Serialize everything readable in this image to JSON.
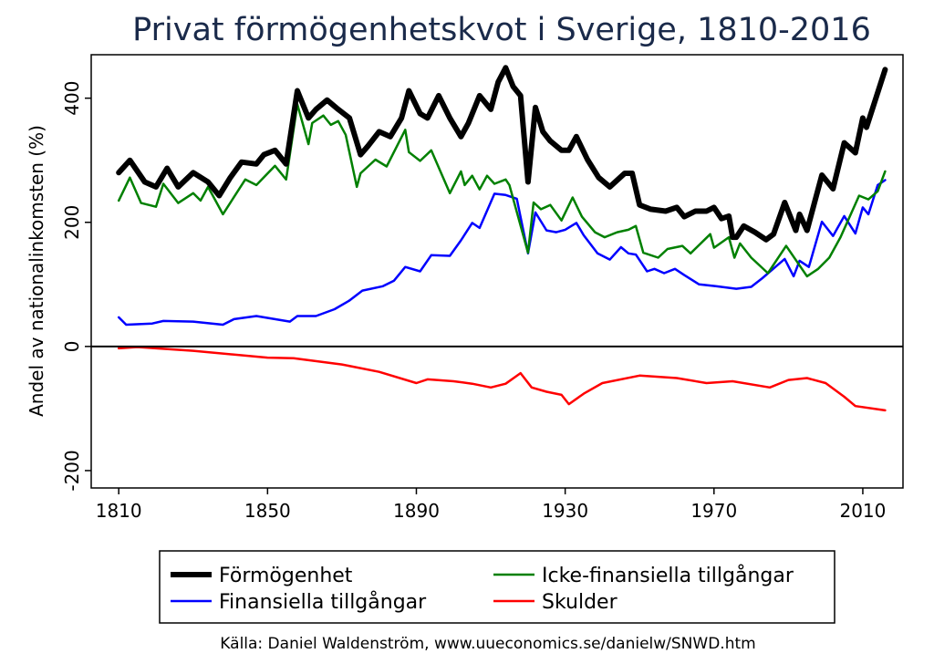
{
  "chart_data": {
    "type": "line",
    "title": "Privat förmögenhetskvot i Sverige, 1810-2016",
    "xlabel": "",
    "ylabel": "Andel av nationalinkomsten (%)",
    "xlim": [
      1802.6,
      2020.8
    ],
    "ylim": [
      -228,
      470
    ],
    "xticks": [
      1810,
      1850,
      1890,
      1930,
      1970,
      2010
    ],
    "yticks": [
      -200,
      0,
      200,
      400
    ],
    "grid": false,
    "legend_position": "bottom",
    "source": "Källa: Daniel Waldenström, www.uueconomics.se/danielw/SNWD.htm",
    "series": [
      {
        "name": "Förmögenhet",
        "color": "#000000",
        "width": 6,
        "x": [
          1810,
          1813,
          1817,
          1820,
          1823,
          1826,
          1830,
          1834,
          1837,
          1840,
          1843,
          1847,
          1849,
          1852,
          1855,
          1858,
          1861,
          1863,
          1866,
          1869,
          1872,
          1875,
          1877,
          1880,
          1883,
          1886,
          1888,
          1891,
          1893,
          1896,
          1899,
          1902,
          1904,
          1907,
          1910,
          1912,
          1914,
          1916,
          1918,
          1920,
          1922,
          1924,
          1926,
          1929,
          1931,
          1933,
          1936,
          1939,
          1942,
          1946,
          1948,
          1950,
          1953,
          1957,
          1960,
          1962,
          1965,
          1968,
          1970,
          1972,
          1974,
          1975,
          1976,
          1978,
          1981,
          1984,
          1986,
          1989,
          1992,
          1993,
          1995,
          1999,
          2002,
          2005,
          2008,
          2010,
          2011,
          2016
        ],
        "y": [
          280,
          300,
          265,
          257,
          287,
          257,
          280,
          265,
          243,
          272,
          297,
          294,
          309,
          316,
          294,
          412,
          368,
          382,
          397,
          382,
          368,
          309,
          323,
          346,
          338,
          368,
          412,
          375,
          368,
          404,
          368,
          338,
          360,
          404,
          382,
          426,
          449,
          419,
          404,
          265,
          385,
          346,
          331,
          316,
          316,
          338,
          301,
          272,
          257,
          279,
          279,
          228,
          221,
          218,
          224,
          209,
          218,
          218,
          224,
          206,
          210,
          176,
          176,
          194,
          184,
          172,
          181,
          232,
          187,
          213,
          187,
          276,
          254,
          328,
          312,
          368,
          353,
          446
        ]
      },
      {
        "name": "Icke-finansiella tillgångar",
        "color": "#008000",
        "width": 2.5,
        "x": [
          1810,
          1813,
          1816,
          1820,
          1822,
          1826,
          1830,
          1832,
          1834,
          1838,
          1844,
          1847,
          1852,
          1855,
          1858,
          1861,
          1862,
          1865,
          1867,
          1869,
          1871,
          1874,
          1875,
          1879,
          1882,
          1887,
          1888,
          1891,
          1894,
          1899,
          1902,
          1903,
          1905,
          1907,
          1909,
          1911,
          1914,
          1915,
          1920,
          1921.5,
          1923.5,
          1926,
          1929,
          1932,
          1934.5,
          1938,
          1940.6,
          1944,
          1947,
          1949,
          1951,
          1955,
          1957.5,
          1961.5,
          1963.7,
          1969,
          1970,
          1974,
          1975.5,
          1977,
          1980,
          1984.5,
          1989.4,
          1995,
          1998,
          2001,
          2004,
          2009,
          2011.5,
          2014,
          2016
        ],
        "y": [
          235,
          272,
          231,
          225,
          262,
          231,
          247,
          235,
          257,
          213,
          269,
          260,
          291,
          269,
          390,
          326,
          360,
          372,
          357,
          363,
          341,
          257,
          279,
          301,
          290,
          349,
          313,
          299,
          316,
          247,
          282,
          260,
          275,
          253,
          275,
          262,
          269,
          260,
          151,
          232,
          221,
          228,
          203,
          240,
          209,
          184,
          176,
          184,
          188,
          194,
          151,
          143,
          157,
          162,
          150,
          181,
          159,
          176,
          143,
          166,
          143,
          118,
          162,
          113,
          125,
          143,
          176,
          243,
          237,
          250,
          282
        ]
      },
      {
        "name": "Finansiella tillgångar",
        "color": "#0000ff",
        "width": 2.5,
        "x": [
          1810,
          1812,
          1819,
          1822,
          1830,
          1838,
          1841,
          1847,
          1856,
          1858,
          1863,
          1868,
          1872,
          1875.5,
          1881,
          1884,
          1887,
          1891,
          1894,
          1899,
          1902,
          1905,
          1907,
          1911,
          1914,
          1917,
          1920,
          1922,
          1925,
          1927.6,
          1930,
          1933,
          1935,
          1938.7,
          1942,
          1945,
          1947,
          1949,
          1952,
          1954,
          1956.6,
          1959.5,
          1962,
          1966,
          1970.5,
          1976,
          1980,
          1983,
          1986.5,
          1989,
          1991.4,
          1993,
          1995.5,
          1999,
          2002,
          2005,
          2008,
          2010,
          2011.5,
          2014,
          2016
        ],
        "y": [
          47,
          35,
          37,
          41,
          40,
          35,
          44,
          49,
          40,
          49,
          49,
          60,
          74,
          90,
          97,
          106,
          128,
          121,
          147,
          146,
          171,
          199,
          191,
          246,
          244,
          238,
          150,
          216,
          187,
          184,
          188,
          199,
          179,
          150,
          140,
          160,
          150,
          148,
          121,
          125,
          118,
          125,
          115,
          100,
          97,
          93,
          96,
          110,
          128,
          141,
          113,
          138,
          128,
          201,
          178,
          210,
          182,
          224,
          213,
          260,
          268
        ]
      },
      {
        "name": "Skulder",
        "color": "#ff0000",
        "width": 2.5,
        "x": [
          1810,
          1815,
          1830,
          1850,
          1857,
          1870,
          1880,
          1890,
          1893,
          1900,
          1905,
          1910,
          1914,
          1918,
          1921,
          1925,
          1929,
          1931,
          1935,
          1940,
          1950,
          1960,
          1968,
          1975,
          1985,
          1990,
          1995,
          2000,
          2005,
          2008,
          2016
        ],
        "y": [
          -3,
          -1,
          -7,
          -18,
          -19,
          -29,
          -41,
          -59,
          -53,
          -56,
          -60,
          -66,
          -60,
          -43,
          -66,
          -73,
          -78,
          -93,
          -76,
          -59,
          -47,
          -51,
          -59,
          -56,
          -66,
          -54,
          -51,
          -59,
          -81,
          -96,
          -103
        ]
      }
    ]
  }
}
